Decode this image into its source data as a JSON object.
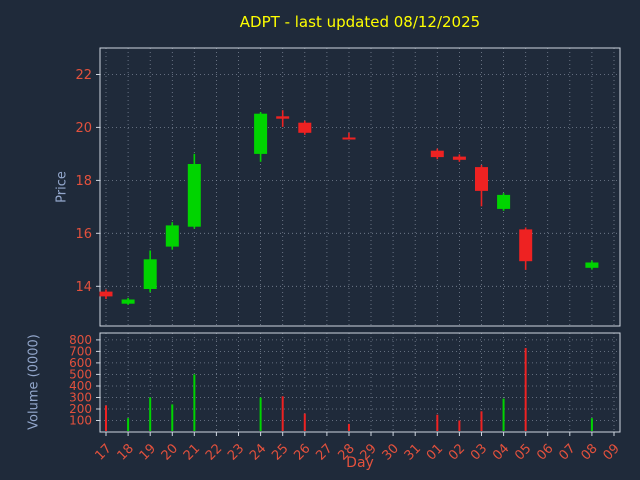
{
  "title": "ADPT - last updated 08/12/2025",
  "colors": {
    "background": "#1f2a3a",
    "title": "#ffff00",
    "axis_label": "#93a7cc",
    "tick_label": "#e3513d",
    "up": "#00d400",
    "down": "#ee2222",
    "grid": "#8a94a6",
    "spine": "#cfd6e0"
  },
  "chart_data": {
    "type": "candlestick",
    "title": "ADPT - last updated 08/12/2025",
    "xlabel": "Day",
    "price_ylabel": "Price",
    "volume_ylabel": "Volume (0000)",
    "x_ticks": [
      "17",
      "18",
      "19",
      "20",
      "21",
      "22",
      "23",
      "24",
      "25",
      "26",
      "27",
      "28",
      "29",
      "30",
      "31",
      "01",
      "02",
      "03",
      "04",
      "05",
      "06",
      "07",
      "08",
      "09"
    ],
    "price_ticks": [
      14,
      16,
      18,
      20,
      22
    ],
    "price_range": [
      12.5,
      23.0
    ],
    "volume_ticks": [
      100,
      200,
      300,
      400,
      500,
      600,
      700,
      800
    ],
    "volume_range": [
      0,
      860
    ],
    "grid": true,
    "candles": [
      {
        "day": "17",
        "open": 13.8,
        "high": 13.88,
        "low": 13.52,
        "close": 13.62,
        "volume": 230
      },
      {
        "day": "18",
        "open": 13.34,
        "high": 13.56,
        "low": 13.3,
        "close": 13.5,
        "volume": 120
      },
      {
        "day": "19",
        "open": 13.9,
        "high": 15.35,
        "low": 13.78,
        "close": 15.02,
        "volume": 300
      },
      {
        "day": "20",
        "open": 15.5,
        "high": 16.42,
        "low": 15.38,
        "close": 16.3,
        "volume": 240
      },
      {
        "day": "21",
        "open": 16.25,
        "high": 19.0,
        "low": 16.18,
        "close": 18.62,
        "volume": 500
      },
      {
        "day": "24",
        "open": 19.0,
        "high": 20.58,
        "low": 18.7,
        "close": 20.52,
        "volume": 300
      },
      {
        "day": "25",
        "open": 20.42,
        "high": 20.65,
        "low": 20.02,
        "close": 20.33,
        "volume": 310
      },
      {
        "day": "26",
        "open": 20.18,
        "high": 20.25,
        "low": 19.72,
        "close": 19.8,
        "volume": 160
      },
      {
        "day": "28",
        "open": 19.62,
        "high": 19.8,
        "low": 19.55,
        "close": 19.58,
        "volume": 70
      },
      {
        "day": "01",
        "open": 19.12,
        "high": 19.2,
        "low": 18.8,
        "close": 18.88,
        "volume": 150
      },
      {
        "day": "02",
        "open": 18.9,
        "high": 18.98,
        "low": 18.7,
        "close": 18.78,
        "volume": 100
      },
      {
        "day": "03",
        "open": 18.5,
        "high": 18.58,
        "low": 17.02,
        "close": 17.6,
        "volume": 180
      },
      {
        "day": "04",
        "open": 16.92,
        "high": 17.52,
        "low": 16.85,
        "close": 17.45,
        "volume": 290
      },
      {
        "day": "05",
        "open": 16.15,
        "high": 16.22,
        "low": 14.62,
        "close": 14.95,
        "volume": 730
      },
      {
        "day": "08",
        "open": 14.7,
        "high": 14.97,
        "low": 14.63,
        "close": 14.9,
        "volume": 120
      }
    ]
  }
}
